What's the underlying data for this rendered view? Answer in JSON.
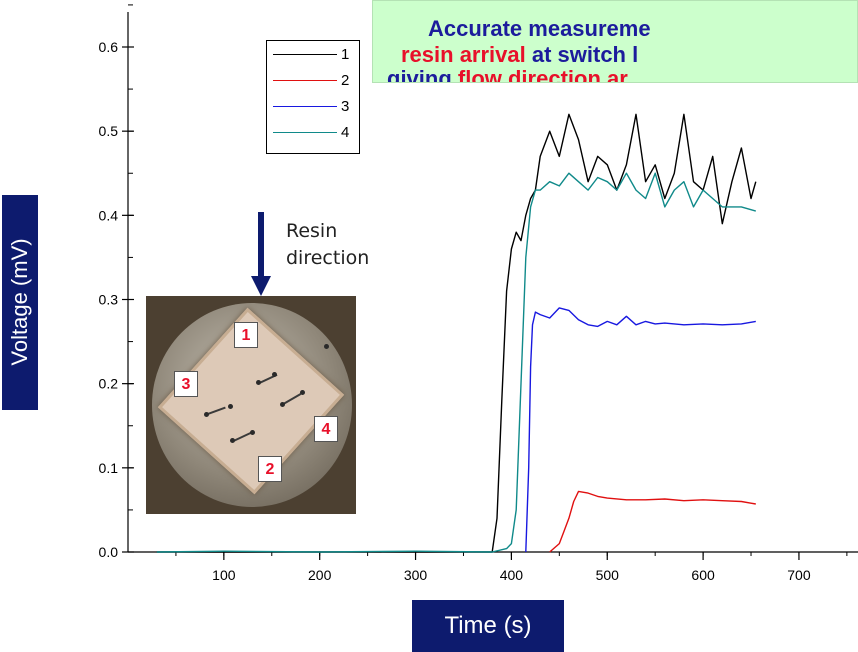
{
  "y_axis_label": "Voltage (mV)",
  "x_axis_label": "Time (s)",
  "annotation": {
    "line1": [
      {
        "text": "Accurate measureme",
        "color": "blue"
      }
    ],
    "line2": [
      {
        "text": "resin arrival",
        "color": "red"
      },
      {
        "text": " at switch l",
        "color": "blue"
      }
    ],
    "line3": [
      {
        "text": "giving ",
        "color": "blue"
      },
      {
        "text": "flow direction ar",
        "color": "red"
      }
    ]
  },
  "resin": {
    "line1": "Resin",
    "line2": "direction"
  },
  "photo_labels": [
    "1",
    "2",
    "3",
    "4"
  ],
  "chart_data": {
    "type": "line",
    "title": "",
    "xlabel": "Time (s)",
    "ylabel": "Voltage (mV)",
    "xlim": [
      0,
      800
    ],
    "ylim": [
      0,
      0.6
    ],
    "x_ticks": [
      100,
      200,
      300,
      400,
      500,
      600,
      700
    ],
    "y_ticks": [
      0.0,
      0.1,
      0.2,
      0.3,
      0.4,
      0.5,
      0.6
    ],
    "y_tick_labels": [
      "0.0",
      "0.1",
      "0.2",
      "0.3",
      "0.4",
      "0.5",
      "0.6"
    ],
    "grid": false,
    "legend_position": "top-left",
    "series": [
      {
        "name": "1",
        "color": "#000000",
        "x": [
          30,
          100,
          200,
          300,
          380,
          385,
          390,
          395,
          400,
          405,
          410,
          415,
          420,
          425,
          430,
          440,
          450,
          460,
          470,
          480,
          490,
          500,
          510,
          520,
          530,
          540,
          550,
          560,
          570,
          580,
          590,
          600,
          610,
          620,
          630,
          640,
          650,
          655
        ],
        "y": [
          0.0,
          0.0,
          0.0,
          0.0,
          0.0,
          0.04,
          0.18,
          0.31,
          0.36,
          0.38,
          0.37,
          0.4,
          0.42,
          0.43,
          0.47,
          0.5,
          0.47,
          0.52,
          0.49,
          0.44,
          0.47,
          0.46,
          0.43,
          0.46,
          0.52,
          0.44,
          0.46,
          0.42,
          0.45,
          0.52,
          0.44,
          0.43,
          0.47,
          0.39,
          0.44,
          0.48,
          0.42,
          0.44
        ]
      },
      {
        "name": "2",
        "color": "#e01010",
        "x": [
          440,
          450,
          455,
          460,
          465,
          470,
          480,
          490,
          500,
          520,
          540,
          560,
          580,
          600,
          620,
          640,
          650,
          655
        ],
        "y": [
          0.0,
          0.01,
          0.025,
          0.04,
          0.06,
          0.072,
          0.07,
          0.066,
          0.064,
          0.062,
          0.062,
          0.063,
          0.061,
          0.062,
          0.061,
          0.06,
          0.058,
          0.057
        ]
      },
      {
        "name": "3",
        "color": "#1818e0",
        "x": [
          415,
          418,
          420,
          422,
          425,
          430,
          440,
          450,
          460,
          470,
          480,
          490,
          500,
          510,
          520,
          530,
          540,
          550,
          560,
          580,
          600,
          620,
          640,
          655
        ],
        "y": [
          0.0,
          0.1,
          0.22,
          0.27,
          0.285,
          0.282,
          0.278,
          0.29,
          0.287,
          0.276,
          0.27,
          0.268,
          0.274,
          0.27,
          0.28,
          0.27,
          0.274,
          0.271,
          0.272,
          0.27,
          0.271,
          0.27,
          0.271,
          0.274
        ]
      },
      {
        "name": "4",
        "color": "#108a8a",
        "x": [
          30,
          100,
          200,
          300,
          380,
          395,
          400,
          405,
          410,
          415,
          420,
          425,
          430,
          440,
          450,
          460,
          470,
          480,
          490,
          500,
          510,
          520,
          530,
          540,
          550,
          560,
          570,
          580,
          590,
          600,
          610,
          620,
          640,
          655
        ],
        "y": [
          0.0,
          0.001,
          0.0,
          0.001,
          0.0,
          0.004,
          0.01,
          0.05,
          0.2,
          0.35,
          0.41,
          0.43,
          0.43,
          0.44,
          0.435,
          0.45,
          0.44,
          0.43,
          0.445,
          0.44,
          0.43,
          0.45,
          0.43,
          0.42,
          0.45,
          0.41,
          0.43,
          0.44,
          0.41,
          0.43,
          0.42,
          0.41,
          0.41,
          0.405
        ]
      }
    ]
  }
}
